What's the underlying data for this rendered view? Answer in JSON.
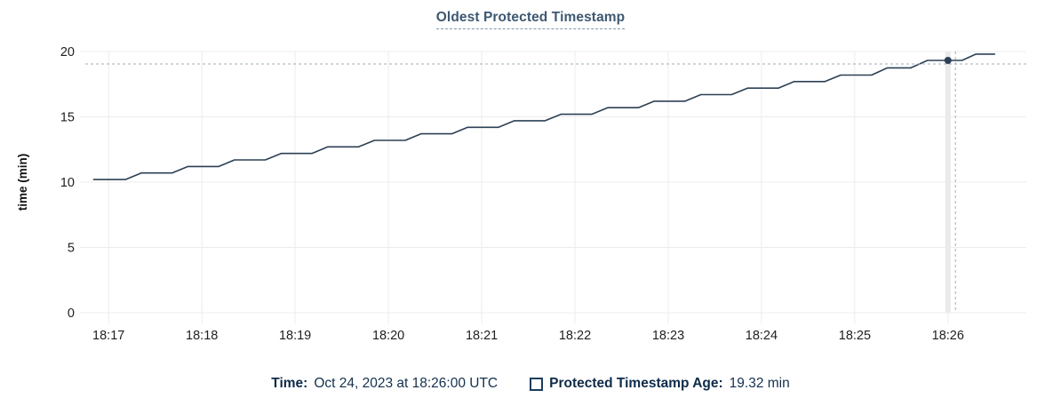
{
  "title": "Oldest Protected Timestamp",
  "chart_data": {
    "type": "line",
    "title": "Oldest Protected Timestamp",
    "xlabel": "",
    "ylabel": "time (min)",
    "x_unit": "minutes after 18:17",
    "xlim": [
      -0.25,
      9.84
    ],
    "ylim": [
      0,
      20
    ],
    "yticks": [
      0,
      5,
      10,
      15,
      20
    ],
    "xticks": [
      {
        "t": 0,
        "label": "18:17"
      },
      {
        "t": 1,
        "label": "18:18"
      },
      {
        "t": 2,
        "label": "18:19"
      },
      {
        "t": 3,
        "label": "18:20"
      },
      {
        "t": 4,
        "label": "18:21"
      },
      {
        "t": 5,
        "label": "18:22"
      },
      {
        "t": 6,
        "label": "18:23"
      },
      {
        "t": 7,
        "label": "18:24"
      },
      {
        "t": 8,
        "label": "18:25"
      },
      {
        "t": 9,
        "label": "18:26"
      }
    ],
    "grid": true,
    "series": [
      {
        "name": "Protected Timestamp Age",
        "color": "#2c4055",
        "points": [
          [
            -0.16,
            10.2
          ],
          [
            0.18,
            10.2
          ],
          [
            0.35,
            10.7
          ],
          [
            0.68,
            10.7
          ],
          [
            0.85,
            11.2
          ],
          [
            1.18,
            11.2
          ],
          [
            1.35,
            11.7
          ],
          [
            1.68,
            11.7
          ],
          [
            1.85,
            12.2
          ],
          [
            2.18,
            12.2
          ],
          [
            2.35,
            12.7
          ],
          [
            2.68,
            12.7
          ],
          [
            2.85,
            13.2
          ],
          [
            3.18,
            13.2
          ],
          [
            3.35,
            13.7
          ],
          [
            3.68,
            13.7
          ],
          [
            3.85,
            14.2
          ],
          [
            4.18,
            14.2
          ],
          [
            4.35,
            14.7
          ],
          [
            4.68,
            14.7
          ],
          [
            4.85,
            15.2
          ],
          [
            5.18,
            15.2
          ],
          [
            5.35,
            15.7
          ],
          [
            5.68,
            15.7
          ],
          [
            5.85,
            16.2
          ],
          [
            6.18,
            16.2
          ],
          [
            6.35,
            16.7
          ],
          [
            6.68,
            16.7
          ],
          [
            6.85,
            17.2
          ],
          [
            7.18,
            17.2
          ],
          [
            7.35,
            17.7
          ],
          [
            7.68,
            17.7
          ],
          [
            7.85,
            18.2
          ],
          [
            8.18,
            18.2
          ],
          [
            8.35,
            18.75
          ],
          [
            8.6,
            18.75
          ],
          [
            8.78,
            19.32
          ],
          [
            9.15,
            19.32
          ],
          [
            9.3,
            19.8
          ],
          [
            9.5,
            19.8
          ]
        ]
      }
    ],
    "hover_column_t": 9,
    "cursor": {
      "t": 9.08,
      "v": 19.05
    },
    "highlight_point": {
      "t": 9.0,
      "v": 19.32
    }
  },
  "footer": {
    "time_label": "Time:",
    "time_value": "Oct 24, 2023 at 18:26:00 UTC",
    "legend_label": "Protected Timestamp Age:",
    "legend_value": "19.32 min"
  },
  "colors": {
    "line": "#2c4055",
    "cursor": "#9cb0bf",
    "title": "#3e5872",
    "footer_text": "#14304e",
    "grid": "#ececec",
    "hover_band": "#e9e9e9",
    "tick_text": "#1f1f1f",
    "axis_label_text": "#111111",
    "legend_box_border": "#1d3d5e"
  }
}
